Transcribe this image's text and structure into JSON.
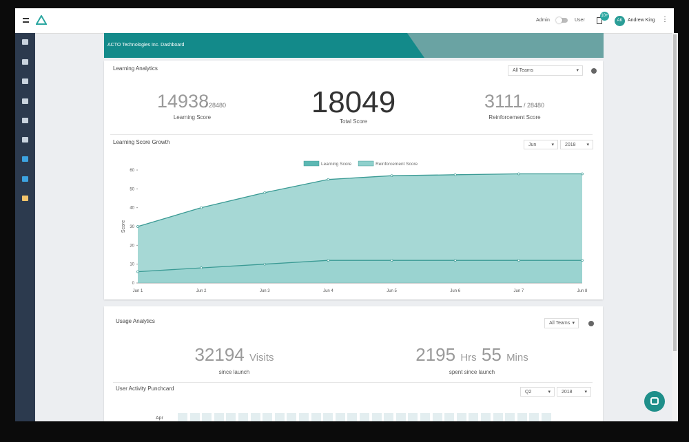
{
  "header": {
    "admin": "Admin",
    "user": "User",
    "badge": "10+",
    "avatar": "AK",
    "user_name": "Andrew King"
  },
  "banner": {
    "title": "ACTO Technologies Inc. Dashboard"
  },
  "learning_analytics": {
    "title": "Learning Analytics",
    "team_filter": "All Teams",
    "learning_score": {
      "value": 14938,
      "total": "/ 28480",
      "label": "Learning Score"
    },
    "total_score": {
      "value": 18049,
      "label": "Total Score"
    },
    "reinforcement_score": {
      "value": 3111,
      "total": "/ 28480",
      "label": "Reinforcement Score"
    }
  },
  "chart_data": {
    "type": "area",
    "title": "Learning Score Growth",
    "month_filter": "Jun",
    "year_filter": "2018",
    "y_label": "Score",
    "categories": [
      "Jun 1",
      "Jun 2",
      "Jun 3",
      "Jun 4",
      "Jun 5",
      "Jun 6",
      "Jun 7",
      "Jun 8"
    ],
    "series": [
      {
        "name": "Learning Score",
        "color": "#5cb8b3",
        "values": [
          30,
          40,
          48,
          55,
          57,
          57.5,
          58,
          58
        ]
      },
      {
        "name": "Reinforcement Score",
        "color": "#8fd0cc",
        "values": [
          6,
          8,
          10,
          12,
          12,
          12,
          12,
          12
        ]
      }
    ],
    "ylim": [
      0,
      60
    ],
    "yticks": [
      0,
      10,
      20,
      30,
      40,
      50,
      60
    ]
  },
  "usage_analytics": {
    "title": "Usage Analytics",
    "team_filter": "All Teams",
    "visits": 32194,
    "visits_unit": "Visits",
    "visits_caption": "since launch",
    "hours": 2195,
    "hours_unit": "Hrs",
    "minutes": 55,
    "minutes_unit": "Mins",
    "time_caption": "spent since launch",
    "punchcard": {
      "title": "User Activity Punchcard",
      "quarter_filter": "Q2",
      "year_filter": "2018",
      "row_label": "Apr"
    }
  }
}
